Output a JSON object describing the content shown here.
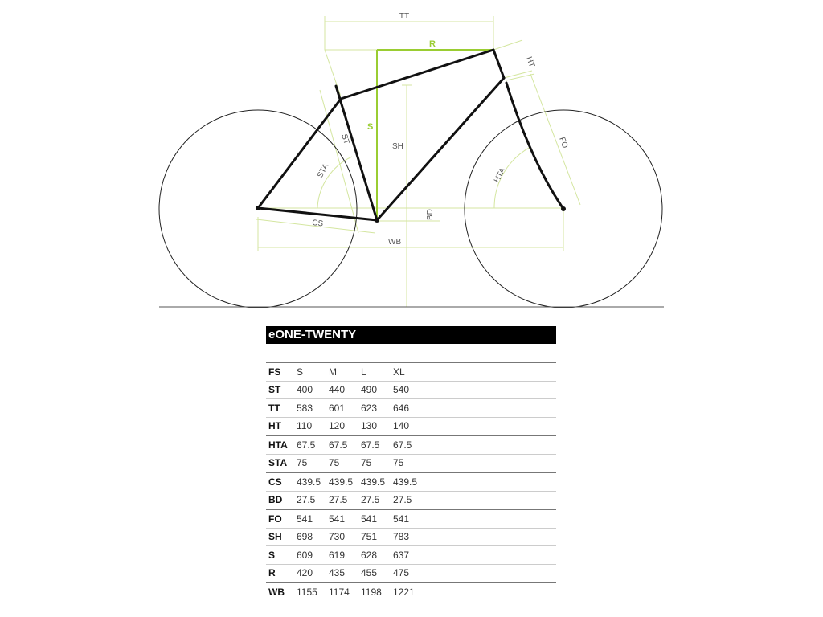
{
  "diagram": {
    "labels": {
      "TT": "TT",
      "R": "R",
      "HT": "HT",
      "ST": "ST",
      "S": "S",
      "SH": "SH",
      "STA": "STA",
      "FO": "FO",
      "HTA": "HTA",
      "CS": "CS",
      "BD": "BD",
      "WB": "WB"
    },
    "colors": {
      "frame": "#111111",
      "dimension": "#d4e6a0",
      "accent": "#9acd32",
      "wheel": "#222222"
    }
  },
  "table": {
    "title": "eONE-TWENTY",
    "header": [
      "FS",
      "S",
      "M",
      "L",
      "XL"
    ],
    "rows": [
      {
        "key": "ST",
        "values": [
          "400",
          "440",
          "490",
          "540"
        ]
      },
      {
        "key": "TT",
        "values": [
          "583",
          "601",
          "623",
          "646"
        ]
      },
      {
        "key": "HT",
        "values": [
          "110",
          "120",
          "130",
          "140"
        ]
      },
      {
        "key": "HTA",
        "values": [
          "67.5",
          "67.5",
          "67.5",
          "67.5"
        ]
      },
      {
        "key": "STA",
        "values": [
          "75",
          "75",
          "75",
          "75"
        ]
      },
      {
        "key": "CS",
        "values": [
          "439.5",
          "439.5",
          "439.5",
          "439.5"
        ]
      },
      {
        "key": "BD",
        "values": [
          "27.5",
          "27.5",
          "27.5",
          "27.5"
        ]
      },
      {
        "key": "FO",
        "values": [
          "541",
          "541",
          "541",
          "541"
        ]
      },
      {
        "key": "SH",
        "values": [
          "698",
          "730",
          "751",
          "783"
        ]
      },
      {
        "key": "S",
        "values": [
          "609",
          "619",
          "628",
          "637"
        ]
      },
      {
        "key": "R",
        "values": [
          "420",
          "435",
          "455",
          "475"
        ]
      },
      {
        "key": "WB",
        "values": [
          "1155",
          "1174",
          "1198",
          "1221"
        ]
      }
    ]
  }
}
